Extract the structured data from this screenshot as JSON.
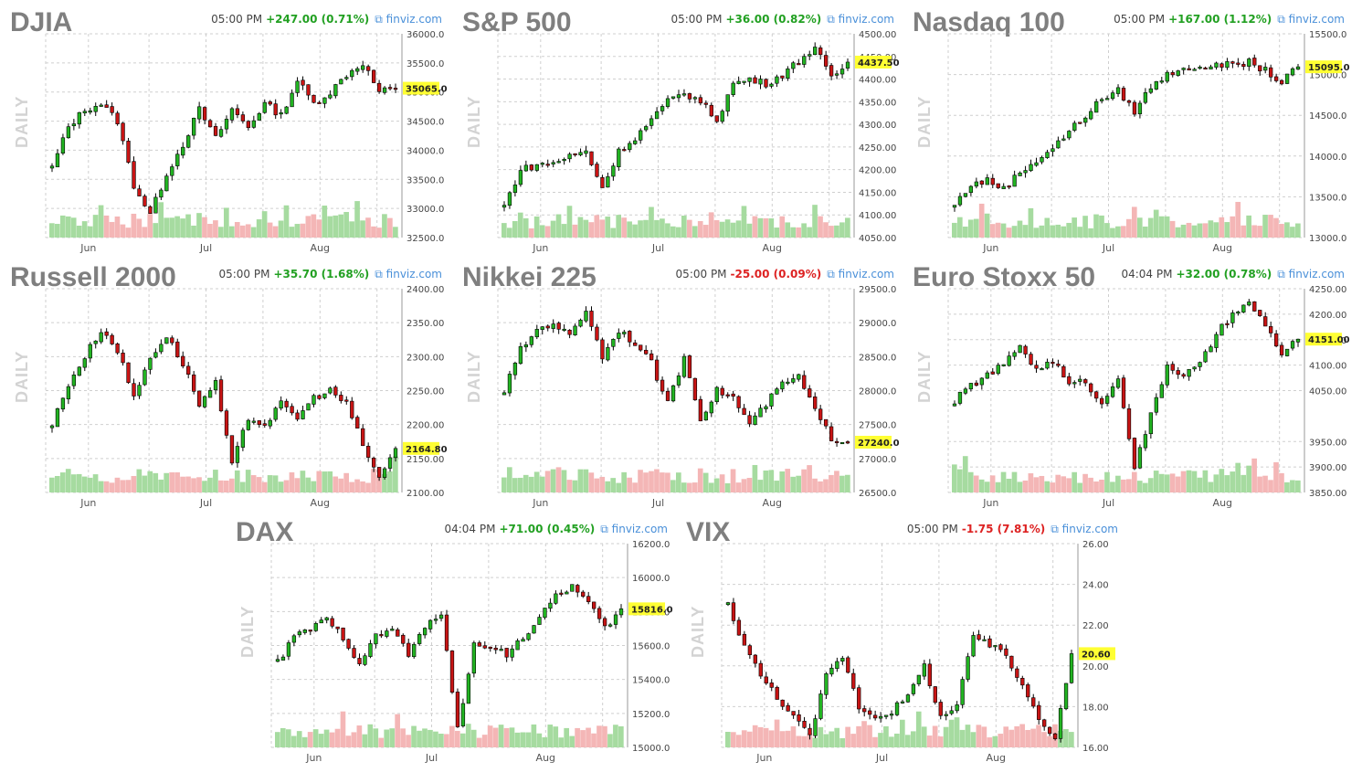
{
  "chart_data": [
    {
      "type": "candlestick",
      "title": "DJIA",
      "period_label": "DAILY",
      "time": "05:00 PM",
      "change": "+247.00 (0.71%)",
      "change_color": "#22a022",
      "source": "finviz.com",
      "ylim": [
        32500,
        36000
      ],
      "y_ticks": [
        "36000.0",
        "35500.0",
        "35000.0",
        "34500.0",
        "34000.0",
        "33500.0",
        "33000.0",
        "32500.0"
      ],
      "x_ticks": [
        "Jun",
        "Jul",
        "Aug"
      ],
      "last": 35065,
      "last_label": "35065.0",
      "anchors": [
        33700,
        34400,
        34700,
        34800,
        34500,
        33400,
        32900,
        33600,
        34100,
        34700,
        34200,
        34700,
        34400,
        34800,
        34600,
        35200,
        34800,
        35000,
        35300,
        35500,
        35000,
        35065
      ]
    },
    {
      "type": "candlestick",
      "title": "S&P 500",
      "period_label": "DAILY",
      "time": "05:00 PM",
      "change": "+36.00 (0.82%)",
      "change_color": "#22a022",
      "source": "finviz.com",
      "ylim": [
        4050,
        4500
      ],
      "y_ticks": [
        "4500.00",
        "4450.00",
        "4400.00",
        "4350.00",
        "4300.00",
        "4250.00",
        "4200.00",
        "4150.00",
        "4100.00",
        "4050.00"
      ],
      "x_ticks": [
        "Jun",
        "Jul",
        "Aug"
      ],
      "last": 4437.5,
      "last_label": "4437.50",
      "anchors": [
        4120,
        4200,
        4210,
        4215,
        4230,
        4240,
        4160,
        4240,
        4270,
        4310,
        4350,
        4370,
        4350,
        4310,
        4390,
        4400,
        4390,
        4410,
        4440,
        4470,
        4400,
        4437.5
      ]
    },
    {
      "type": "candlestick",
      "title": "Nasdaq 100",
      "period_label": "DAILY",
      "time": "05:00 PM",
      "change": "+167.00 (1.12%)",
      "change_color": "#22a022",
      "source": "finviz.com",
      "ylim": [
        13000,
        15500
      ],
      "y_ticks": [
        "15500.0",
        "15000.0",
        "14500.0",
        "14000.0",
        "13500.0",
        "13000.0"
      ],
      "x_ticks": [
        "Jun",
        "Jul",
        "Aug"
      ],
      "last": 15095,
      "last_label": "15095.0",
      "anchors": [
        13400,
        13650,
        13700,
        13600,
        13800,
        13950,
        14100,
        14300,
        14500,
        14700,
        14800,
        14550,
        14850,
        15000,
        15100,
        15050,
        15150,
        15100,
        15150,
        15050,
        14900,
        15095
      ]
    },
    {
      "type": "candlestick",
      "title": "Russell 2000",
      "period_label": "DAILY",
      "time": "05:00 PM",
      "change": "+35.70 (1.68%)",
      "change_color": "#22a022",
      "source": "finviz.com",
      "ylim": [
        2100,
        2400
      ],
      "y_ticks": [
        "2400.00",
        "2350.00",
        "2300.00",
        "2250.00",
        "2200.00",
        "2150.00",
        "2100.00"
      ],
      "x_ticks": [
        "Jun",
        "Jul",
        "Aug"
      ],
      "last": 2164.8,
      "last_label": "2164.80",
      "anchors": [
        2200,
        2260,
        2300,
        2340,
        2310,
        2240,
        2300,
        2330,
        2290,
        2230,
        2260,
        2140,
        2210,
        2200,
        2230,
        2210,
        2240,
        2250,
        2230,
        2170,
        2120,
        2164.8
      ]
    },
    {
      "type": "candlestick",
      "title": "Nikkei 225",
      "period_label": "DAILY",
      "time": "05:00 PM",
      "change": "-25.00 (0.09%)",
      "change_color": "#dd2222",
      "source": "finviz.com",
      "ylim": [
        26500,
        29500
      ],
      "y_ticks": [
        "29500.0",
        "29000.0",
        "28500.0",
        "28000.0",
        "27500.0",
        "27000.0",
        "26500.0"
      ],
      "x_ticks": [
        "Jun",
        "Jul",
        "Aug"
      ],
      "last": 27240,
      "last_label": "27240.0",
      "anchors": [
        28000,
        28600,
        28900,
        29000,
        28800,
        29200,
        28500,
        28900,
        28700,
        28400,
        27800,
        28500,
        27600,
        28000,
        27900,
        27500,
        27800,
        28100,
        28200,
        27700,
        27300,
        27240
      ]
    },
    {
      "type": "candlestick",
      "title": "Euro Stoxx 50",
      "period_label": "DAILY",
      "time": "04:04 PM",
      "change": "+32.00 (0.78%)",
      "change_color": "#22a022",
      "source": "finviz.com",
      "ylim": [
        3850,
        4250
      ],
      "y_ticks": [
        "4250.00",
        "4200.00",
        "4150.00",
        "4100.00",
        "4050.00",
        "3950.00",
        "3900.00",
        "3850.00"
      ],
      "x_ticks": [
        "Jun",
        "Jul",
        "Aug"
      ],
      "last": 4151,
      "last_label": "4151.00",
      "anchors": [
        4030,
        4060,
        4080,
        4100,
        4140,
        4090,
        4110,
        4060,
        4070,
        4020,
        4080,
        3900,
        4000,
        4100,
        4080,
        4100,
        4160,
        4200,
        4220,
        4180,
        4120,
        4151
      ]
    },
    {
      "type": "candlestick",
      "title": "DAX",
      "period_label": "DAILY",
      "time": "04:04 PM",
      "change": "+71.00 (0.45%)",
      "change_color": "#22a022",
      "source": "finviz.com",
      "ylim": [
        15000,
        16200
      ],
      "y_ticks": [
        "16200.0",
        "16000.0",
        "15800.0",
        "15600.0",
        "15400.0",
        "15200.0",
        "15000.0"
      ],
      "x_ticks": [
        "Jun",
        "Jul",
        "Aug"
      ],
      "last": 15816,
      "last_label": "15816.0",
      "anchors": [
        15500,
        15650,
        15700,
        15750,
        15650,
        15500,
        15650,
        15700,
        15550,
        15700,
        15800,
        15100,
        15600,
        15600,
        15550,
        15650,
        15750,
        15900,
        15950,
        15850,
        15700,
        15816
      ]
    },
    {
      "type": "candlestick",
      "title": "VIX",
      "period_label": "DAILY",
      "time": "05:00 PM",
      "change": "-1.75 (7.81%)",
      "change_color": "#dd2222",
      "source": "finviz.com",
      "ylim": [
        16,
        26
      ],
      "y_ticks": [
        "26.00",
        "24.00",
        "22.00",
        "20.00",
        "18.00",
        "16.00"
      ],
      "x_ticks": [
        "Jun",
        "Jul",
        "Aug"
      ],
      "last": 20.6,
      "last_label": "20.60",
      "anchors": [
        23,
        21,
        19.5,
        18.5,
        17.5,
        16.5,
        19.5,
        20.5,
        18,
        17.5,
        17.8,
        18.5,
        20,
        17.5,
        18,
        21.5,
        21,
        20.5,
        19,
        17.5,
        16.5,
        20.6
      ]
    }
  ],
  "colors": {
    "up": "#22b422",
    "down": "#c81414",
    "vol_up": "#a6dba0",
    "vol_down": "#f4b6b6",
    "highlight": "#ffff33"
  }
}
